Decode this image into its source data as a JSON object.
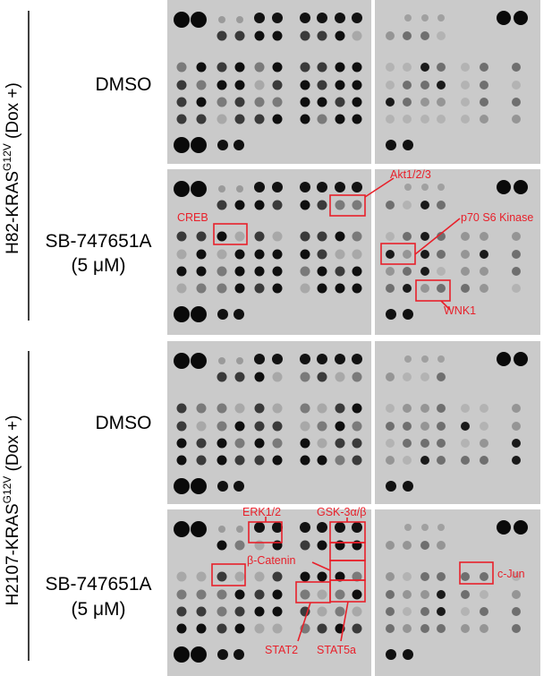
{
  "figure": {
    "group_labels": [
      {
        "main": "H82-KRAS",
        "sup": "G12V",
        "suffix": " (Dox +)"
      },
      {
        "main": "H2107-KRAS",
        "sup": "G12V",
        "suffix": " (Dox +)"
      }
    ],
    "condition_labels": [
      {
        "line1": "DMSO",
        "line2": ""
      },
      {
        "line1": "SB-747651A",
        "line2": "(5 μM)"
      },
      {
        "line1": "DMSO",
        "line2": ""
      },
      {
        "line1": "SB-747651A",
        "line2": "(5 μM)"
      }
    ],
    "annotations": {
      "akt": "Akt1/2/3",
      "creb": "CREB",
      "p70s6k": "p70  S6 Kinase",
      "wnk1": "WNK1",
      "erk": "ERK1/2",
      "gsk3": "GSK-3α/β",
      "bcatenin": "β-Catenin",
      "cjun": "c-Jun",
      "stat2": "STAT2",
      "stat5a": "STAT5a"
    },
    "colors": {
      "highlight": "#e8202a",
      "membrane": "#c9c9c9",
      "spot": "#0a0a0a"
    }
  }
}
